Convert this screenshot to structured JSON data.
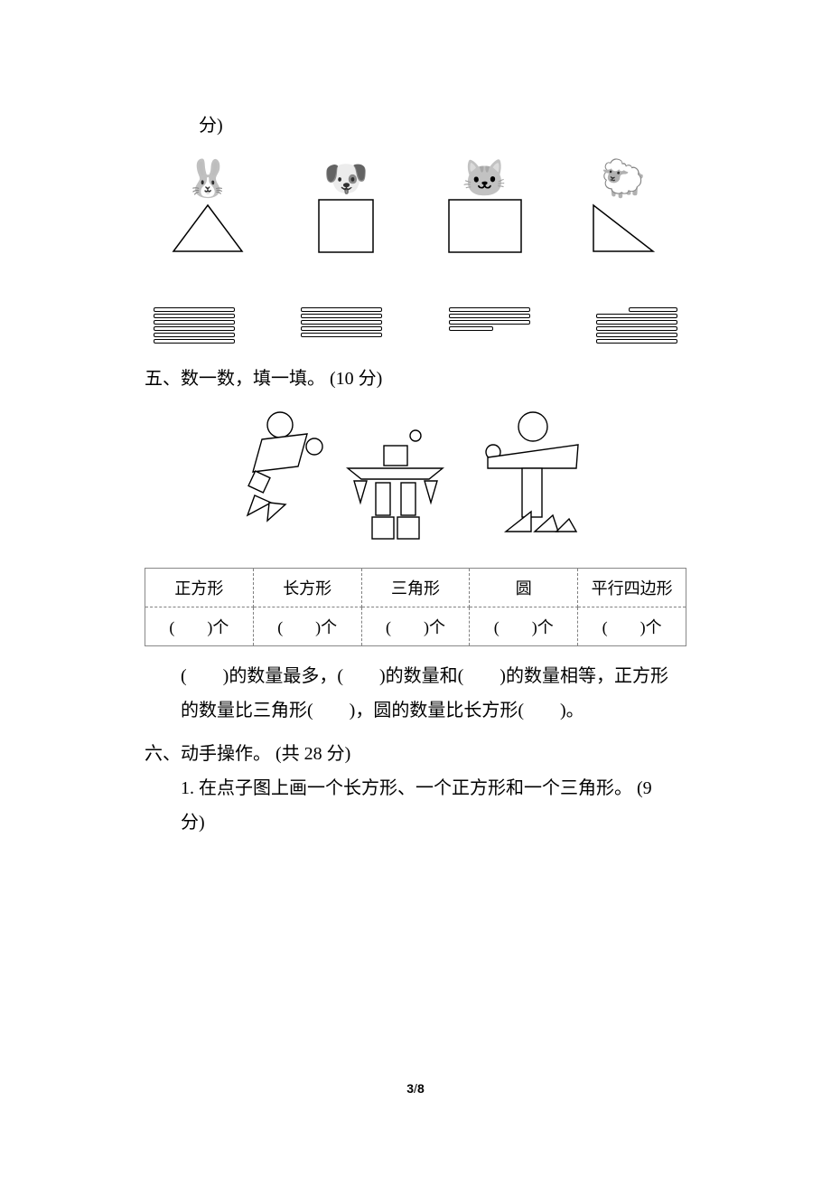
{
  "top_fragment": "分)",
  "animals": {
    "items": [
      {
        "emoji": "🐰",
        "shape": "triangle"
      },
      {
        "emoji": "🐶",
        "shape": "square"
      },
      {
        "emoji": "🐱",
        "shape": "rect"
      },
      {
        "emoji": "🐑",
        "shape": "right-triangle"
      }
    ],
    "stroke": "#000000",
    "fill": "#ffffff"
  },
  "log_stacks": {
    "counts": [
      6,
      5,
      4,
      6
    ],
    "short_last_index": 2,
    "short_top_index": 3,
    "log_color": "#000000"
  },
  "section5": {
    "heading": "五、数一数，填一填。 (10 分)",
    "figure_stroke": "#000000",
    "table": {
      "headers": [
        "正方形",
        "长方形",
        "三角形",
        "圆",
        "平行四边形"
      ],
      "row_template": "(　　)个"
    },
    "para1": "(　　)的数量最多，(　　)的数量和(　　)的数量相等，正方形",
    "para2": "的数量比三角形(　　)，圆的数量比长方形(　　)。"
  },
  "section6": {
    "heading": "六、动手操作。 (共 28 分)",
    "item1_a": "1. 在点子图上画一个长方形、一个正方形和一个三角形。 (9",
    "item1_b": "分)"
  },
  "footer": {
    "current": "3",
    "sep": "/",
    "total": "8"
  }
}
